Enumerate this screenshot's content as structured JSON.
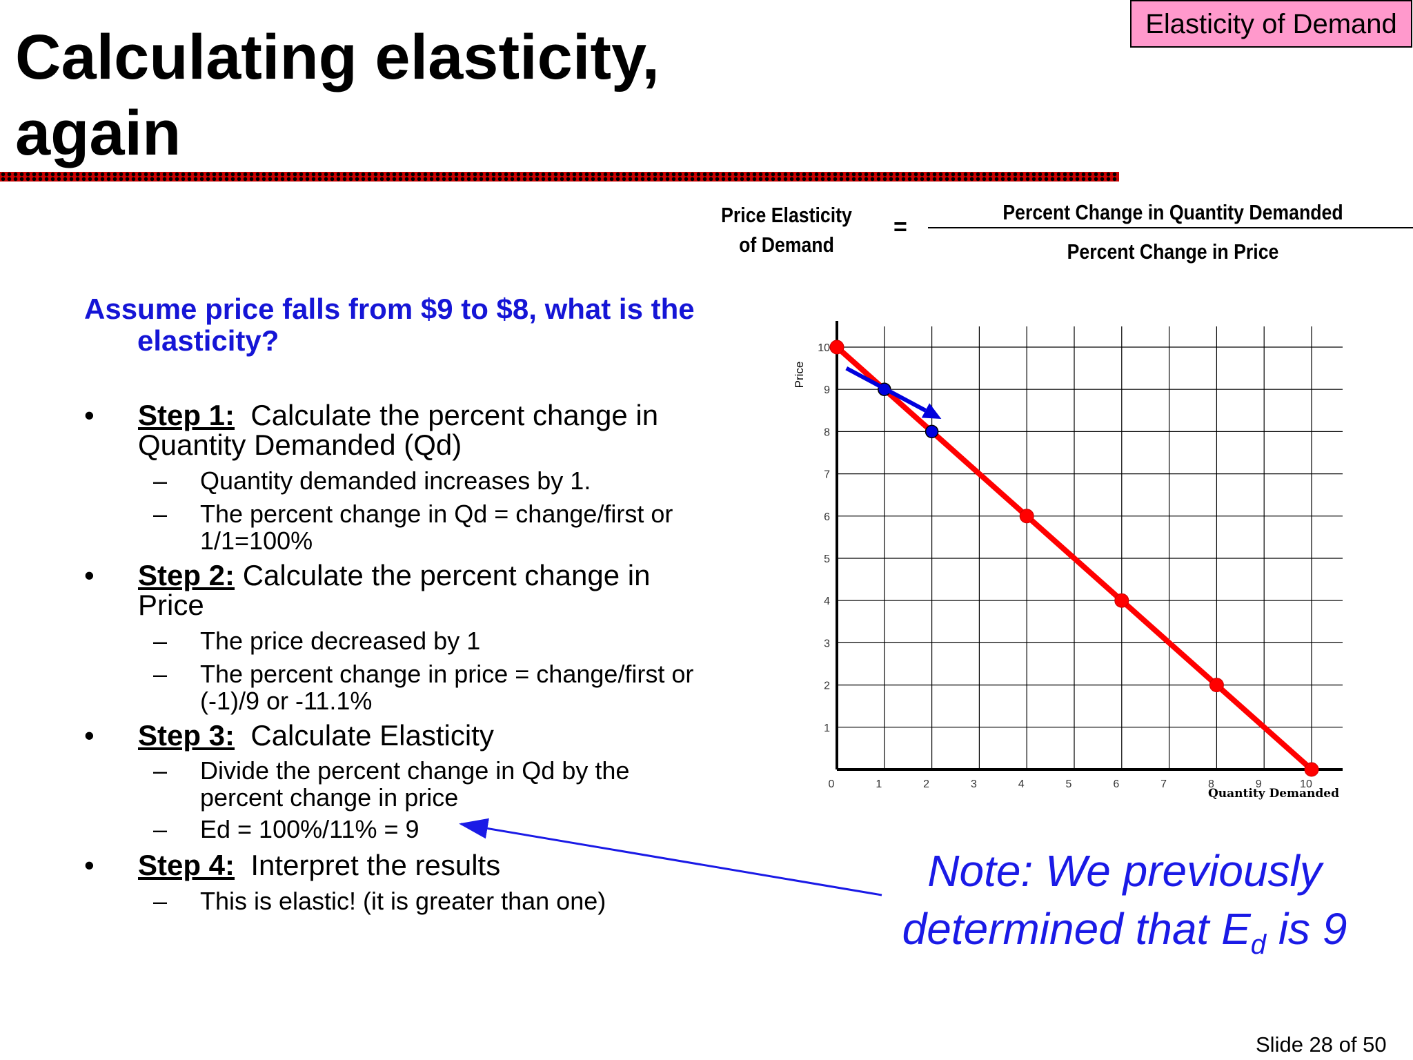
{
  "slide": {
    "title_line1": "Calculating elasticity,",
    "title_line2": "again",
    "badge": "Elasticity of Demand",
    "slide_number": "Slide 28 of 50"
  },
  "formula": {
    "left_line1": "Price Elasticity",
    "left_line2": "of Demand",
    "equals": "=",
    "numerator": "Percent Change in Quantity Demanded",
    "denominator": "Percent Change in Price"
  },
  "question": {
    "line1": "Assume price falls from $9 to $8, what is the",
    "line2": "elasticity?"
  },
  "steps": [
    {
      "label": "Step 1:",
      "text_line1": "  Calculate the percent change in",
      "text_line2": "Quantity Demanded (Qd)",
      "subs": [
        {
          "line1": "Quantity demanded increases by 1.",
          "line2": ""
        },
        {
          "line1": "The percent change in Qd = change/first or",
          "line2": "1/1=100%"
        }
      ]
    },
    {
      "label": "Step 2:",
      "text_line1": " Calculate the percent change in",
      "text_line2": "Price",
      "subs": [
        {
          "line1": "The price decreased by 1",
          "line2": ""
        },
        {
          "line1": "The percent change in price = change/first or",
          "line2": "(-1)/9 or -11.1%"
        }
      ]
    },
    {
      "label": "Step 3:",
      "text_line1": "  Calculate Elasticity",
      "text_line2": "",
      "subs": [
        {
          "line1": "Divide the percent change in Qd by the",
          "line2": "percent change in price"
        },
        {
          "line1": "Ed = 100%/11% = 9",
          "line2": ""
        }
      ]
    },
    {
      "label": "Step 4:",
      "text_line1": "  Interpret the results",
      "text_line2": "",
      "subs": [
        {
          "line1": "This is elastic! (it is greater than one)",
          "line2": ""
        }
      ]
    }
  ],
  "bullet_char": "•",
  "dash_char": "–",
  "note": {
    "line1": "Note: We previously",
    "line2_a": "determined that E",
    "line2_sub": "d",
    "line2_b": " is 9"
  },
  "chart_data": {
    "type": "line",
    "xlabel": "Quantity Demanded",
    "ylabel": "Price",
    "xlim": [
      0,
      10
    ],
    "ylim": [
      0,
      10
    ],
    "x_ticks": [
      "0",
      "1",
      "2",
      "3",
      "4",
      "5",
      "6",
      "7",
      "8",
      "9",
      "10"
    ],
    "y_ticks": [
      "1",
      "2",
      "3",
      "4",
      "5",
      "6",
      "7",
      "8",
      "9",
      "10"
    ],
    "grid": true,
    "series": [
      {
        "color": "#ff0000",
        "x": [
          0,
          10
        ],
        "y": [
          10,
          0
        ]
      }
    ],
    "red_points": [
      [
        0,
        10
      ],
      [
        4,
        6
      ],
      [
        6,
        4
      ],
      [
        8,
        2
      ],
      [
        10,
        0
      ]
    ],
    "blue_points": [
      [
        1,
        9
      ],
      [
        2,
        8
      ]
    ],
    "arrow": {
      "from": [
        0.2,
        9.5
      ],
      "to": [
        2.2,
        8.3
      ],
      "color": "#0000dd"
    }
  }
}
